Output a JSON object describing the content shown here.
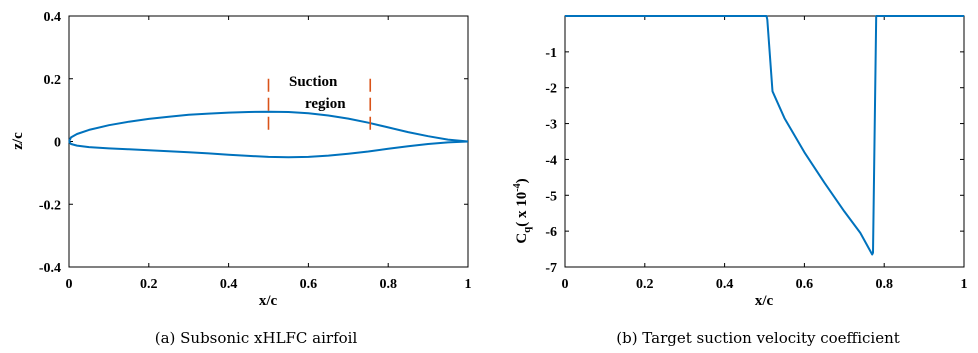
{
  "chart_data": [
    {
      "type": "line",
      "title": "",
      "caption": "(a) Subsonic xHLFC airfoil",
      "xlabel": "x/c",
      "ylabel": "z/c",
      "xlim": [
        0,
        1
      ],
      "ylim": [
        -0.4,
        0.4
      ],
      "xticks": [
        "0",
        "0.2",
        "0.4",
        "0.6",
        "0.8",
        "1"
      ],
      "yticks": [
        "0.4",
        "0.2",
        "0",
        "-0.2",
        "-0.4"
      ],
      "grid": false,
      "line_color": "#0072BD",
      "marker_color": "#D95319",
      "series": [
        {
          "x": [
            0,
            0.005,
            0.02,
            0.05,
            0.1,
            0.15,
            0.2,
            0.25,
            0.3,
            0.35,
            0.4,
            0.45,
            0.5,
            0.55,
            0.6,
            0.65,
            0.7,
            0.75,
            0.8,
            0.85,
            0.9,
            0.95,
            1.0
          ],
          "y": [
            0,
            0.013,
            0.024,
            0.037,
            0.052,
            0.063,
            0.072,
            0.079,
            0.085,
            0.089,
            0.092,
            0.094,
            0.095,
            0.094,
            0.09,
            0.083,
            0.073,
            0.06,
            0.045,
            0.03,
            0.017,
            0.006,
            0
          ]
        },
        {
          "x": [
            0,
            0.005,
            0.02,
            0.05,
            0.1,
            0.15,
            0.2,
            0.25,
            0.3,
            0.35,
            0.4,
            0.45,
            0.5,
            0.55,
            0.6,
            0.65,
            0.7,
            0.75,
            0.8,
            0.85,
            0.9,
            0.95,
            1.0
          ],
          "y": [
            0,
            -0.008,
            -0.013,
            -0.018,
            -0.022,
            -0.025,
            -0.028,
            -0.031,
            -0.034,
            -0.038,
            -0.042,
            -0.046,
            -0.049,
            -0.05,
            -0.049,
            -0.045,
            -0.039,
            -0.032,
            -0.023,
            -0.015,
            -0.008,
            -0.003,
            0
          ]
        }
      ],
      "markers": [
        {
          "x": 0.5,
          "y_range": [
            0.025,
            0.2
          ]
        },
        {
          "x": 0.755,
          "y_range": [
            0.02,
            0.2
          ]
        }
      ],
      "annotation_lines": [
        "Suction",
        "region"
      ]
    },
    {
      "type": "line",
      "title": "",
      "caption": "(b) Target suction velocity coefficient",
      "xlabel": "x/c",
      "ylabel": "C",
      "ylabel_sub": "q",
      "ylabel_rest": "( x 10",
      "ylabel_exp": "-4",
      "ylabel_close": ")",
      "xlim": [
        0,
        1
      ],
      "ylim": [
        -7,
        0
      ],
      "xticks": [
        "0",
        "0.2",
        "0.4",
        "0.6",
        "0.8",
        "1"
      ],
      "yticks": [
        "-1",
        "-2",
        "-3",
        "-4",
        "-5",
        "-6",
        "-7"
      ],
      "grid": false,
      "line_color": "#0072BD",
      "series": [
        {
          "x": [
            0,
            0.505,
            0.507,
            0.52,
            0.55,
            0.6,
            0.65,
            0.7,
            0.74,
            0.77,
            0.772,
            0.78,
            1.0
          ],
          "y": [
            0,
            0,
            -0.1,
            -2.1,
            -2.85,
            -3.8,
            -4.65,
            -5.45,
            -6.05,
            -6.65,
            -6.6,
            0,
            0
          ]
        }
      ]
    }
  ]
}
